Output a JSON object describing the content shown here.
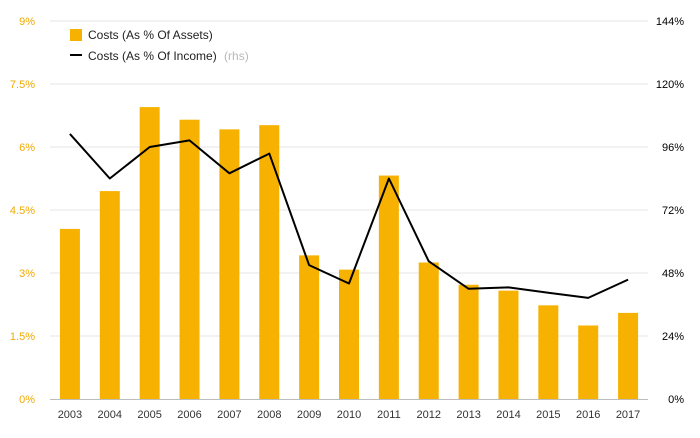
{
  "colors": {
    "bar": "#F7B100",
    "line": "#000000",
    "left_axis_text": "#F2A900",
    "right_axis_text": "#000000",
    "grid": "#e6e6e6",
    "x_axis_text": "#333333"
  },
  "legend": {
    "bar_label": "Costs (As % Of Assets)",
    "line_label": "Costs (As % Of Income)",
    "line_suffix": "(rhs)"
  },
  "chart_data": {
    "type": "bar",
    "categories": [
      "2003",
      "2004",
      "2005",
      "2006",
      "2007",
      "2008",
      "2009",
      "2010",
      "2011",
      "2012",
      "2013",
      "2014",
      "2015",
      "2016",
      "2017"
    ],
    "series": [
      {
        "name": "Costs (As % Of Assets)",
        "type": "bar",
        "axis": "left",
        "values": [
          4.05,
          4.95,
          6.95,
          6.65,
          6.42,
          6.52,
          3.42,
          3.08,
          5.32,
          3.25,
          2.72,
          2.58,
          2.23,
          1.75,
          2.05
        ]
      },
      {
        "name": "Costs (As % Of Income)",
        "type": "line",
        "axis": "right",
        "values": [
          101,
          84,
          96,
          98.5,
          86,
          93.5,
          51,
          44,
          84,
          52.5,
          42,
          42.5,
          40.5,
          38.5,
          45.5
        ]
      }
    ],
    "left_axis": {
      "ticks": [
        "0%",
        "1.5%",
        "3%",
        "4.5%",
        "6%",
        "7.5%",
        "9%"
      ],
      "tick_values": [
        0,
        1.5,
        3,
        4.5,
        6,
        7.5,
        9
      ],
      "ylim": [
        0,
        9
      ]
    },
    "right_axis": {
      "ticks": [
        "0%",
        "24%",
        "48%",
        "72%",
        "96%",
        "120%",
        "144%"
      ],
      "tick_values": [
        0,
        24,
        48,
        72,
        96,
        120,
        144
      ],
      "ylim": [
        0,
        144
      ]
    },
    "grid": true,
    "legend_position": "top-left"
  }
}
